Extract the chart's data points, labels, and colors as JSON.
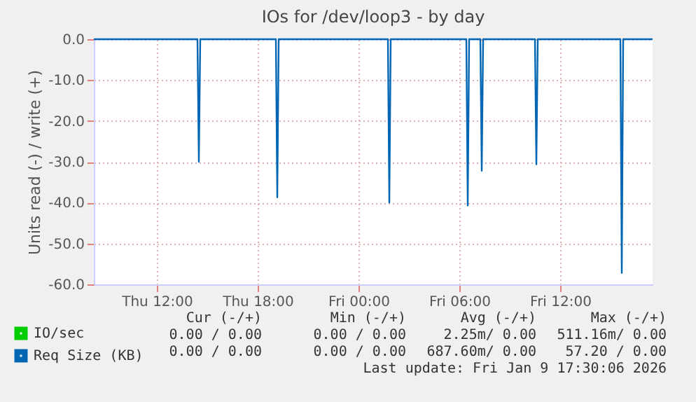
{
  "chart_data": {
    "type": "line",
    "title": "IOs for /dev/loop3 - by day",
    "ylabel": "Units read (-) / write (+)",
    "xlim": [
      "2026-01-08T08:15",
      "2026-01-09T17:30"
    ],
    "xticks": [
      {
        "value": "2026-01-08T12:00",
        "label": "Thu 12:00"
      },
      {
        "value": "2026-01-08T18:00",
        "label": "Thu 18:00"
      },
      {
        "value": "2026-01-09T00:00",
        "label": "Fri 00:00"
      },
      {
        "value": "2026-01-09T06:00",
        "label": "Fri 06:00"
      },
      {
        "value": "2026-01-09T12:00",
        "label": "Fri 12:00"
      }
    ],
    "ylim": [
      -60,
      0
    ],
    "yticks": [
      {
        "value": 0,
        "label": "0.0"
      },
      {
        "value": -10,
        "label": "-10.0"
      },
      {
        "value": -20,
        "label": "-20.0"
      },
      {
        "value": -30,
        "label": "-30.0"
      },
      {
        "value": -40,
        "label": "-40.0"
      },
      {
        "value": -50,
        "label": "-50.0"
      },
      {
        "value": -60,
        "label": "-60.0"
      }
    ],
    "grid": true,
    "legend": "bottom",
    "series": [
      {
        "name": "IO/sec",
        "color": "#00cc00"
      },
      {
        "name": "Req Size (KB)",
        "color": "#0066b3",
        "x": [
          "2026-01-08T08:15",
          "2026-01-08T14:25",
          "2026-01-08T14:30",
          "2026-01-08T14:35",
          "2026-01-08T19:05",
          "2026-01-08T19:10",
          "2026-01-08T19:15",
          "2026-01-09T01:45",
          "2026-01-09T01:50",
          "2026-01-09T01:55",
          "2026-01-09T06:25",
          "2026-01-09T06:30",
          "2026-01-09T06:35",
          "2026-01-09T07:15",
          "2026-01-09T07:20",
          "2026-01-09T07:25",
          "2026-01-09T10:30",
          "2026-01-09T10:35",
          "2026-01-09T10:40",
          "2026-01-09T15:35",
          "2026-01-09T15:40",
          "2026-01-09T15:45",
          "2026-01-09T17:30"
        ],
        "values": [
          0,
          0,
          -30,
          0,
          0,
          -38.7,
          0,
          0,
          -40,
          0,
          0,
          -40.7,
          0,
          0,
          -32.2,
          0,
          0,
          -30.6,
          0,
          0,
          -57.2,
          0,
          0
        ]
      }
    ],
    "annotations": [
      "Cur (-/+)",
      "Min (-/+)",
      "Avg (-/+)",
      "Max (-/+)",
      "0.00 / 0.00",
      "0.00 / 0.00",
      "2.25m/ 0.00",
      "511.16m/ 0.00",
      "0.00 / 0.00",
      "0.00 / 0.00",
      "687.60m/ 0.00",
      "57.20 / 0.00",
      "Last update: Fri Jan  9 17:30:06 2026"
    ]
  }
}
